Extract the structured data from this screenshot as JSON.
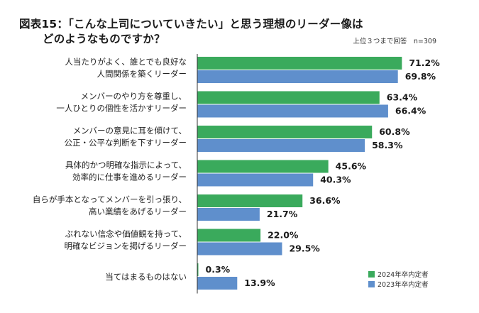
{
  "title_line1": "図表15：「こんな上司についていきたい」と思う理想のリーダー像は",
  "title_line2": "どのようなものですか？",
  "note": "上位３つまで回答　n=309",
  "colors": {
    "s2024": "#3aaa5c",
    "s2023": "#5f8fcc",
    "axis": "#333333"
  },
  "chart_data": {
    "type": "bar",
    "orientation": "horizontal",
    "categories": [
      [
        "人当たりがよく、誰とでも良好な",
        "人間関係を築くリーダー"
      ],
      [
        "メンバーのやり方を尊重し、",
        "一人ひとりの個性を活かすリーダー"
      ],
      [
        "メンバーの意見に耳を傾けて、",
        "公正・公平な判断を下すリーダー"
      ],
      [
        "具体的かつ明確な指示によって、",
        "効率的に仕事を進めるリーダー"
      ],
      [
        "自らが手本となってメンバーを引っ張り、",
        "高い業績をあげるリーダー"
      ],
      [
        "ぶれない信念や価値観を持って、",
        "明確なビジョンを掲げるリーダー"
      ],
      [
        "当てはまるものはない"
      ]
    ],
    "series": [
      {
        "name": "2024年卒内定者",
        "values": [
          71.2,
          63.4,
          60.8,
          45.6,
          36.6,
          22.0,
          0.3
        ],
        "labels": [
          "71.2%",
          "63.4%",
          "60.8%",
          "45.6%",
          "36.6%",
          "22.0%",
          "0.3%"
        ]
      },
      {
        "name": "2023年卒内定者",
        "values": [
          69.8,
          66.4,
          58.3,
          40.3,
          21.7,
          29.5,
          13.9
        ],
        "labels": [
          "69.8%",
          "66.4%",
          "58.3%",
          "40.3%",
          "21.7%",
          "29.5%",
          "13.9%"
        ]
      }
    ],
    "xlim": [
      0,
      100
    ],
    "legend": "bottom-right"
  }
}
